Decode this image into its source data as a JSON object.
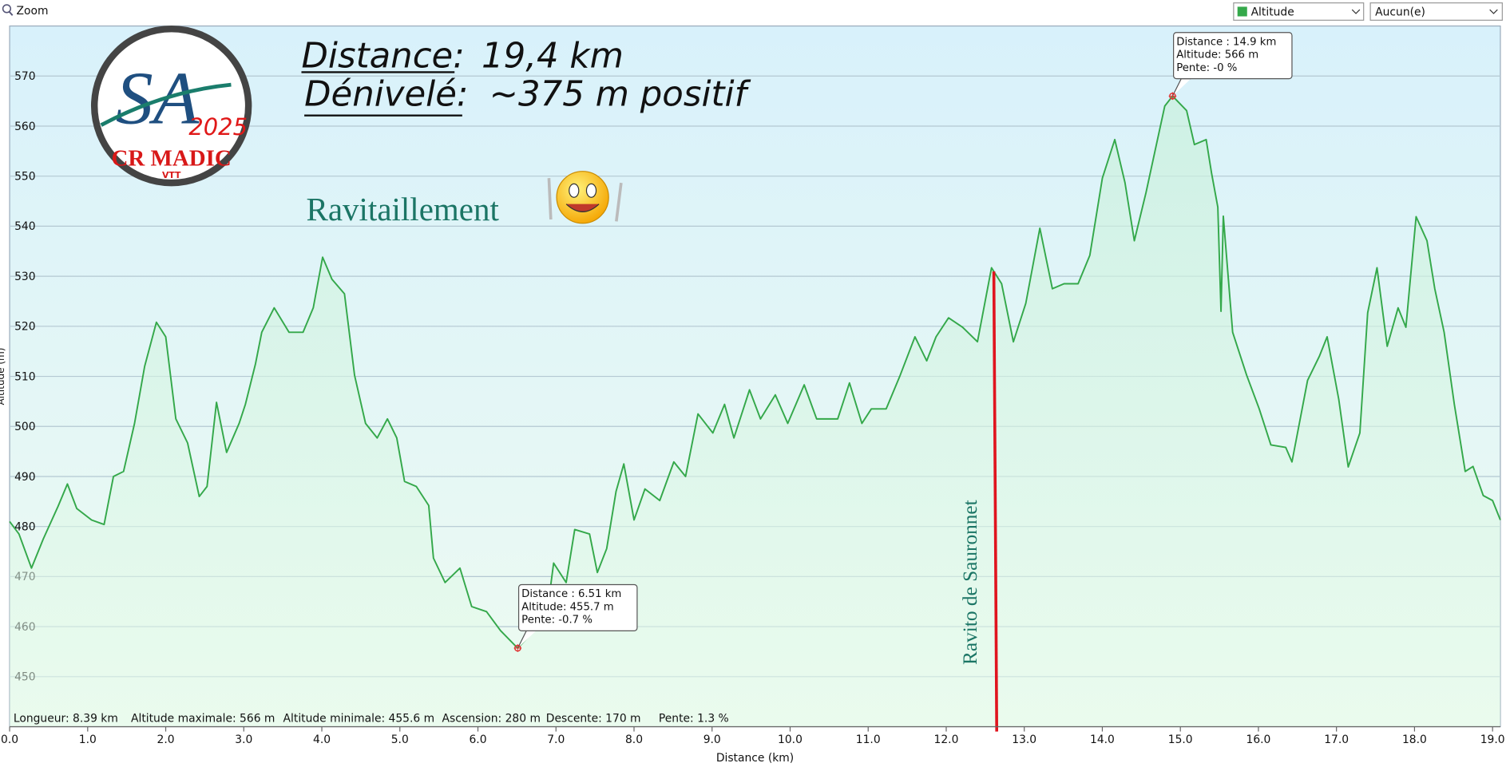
{
  "toolbar": {
    "zoom": "Zoom",
    "series_select": "Altitude",
    "compare_select": "Aucun(e)"
  },
  "chart_data": {
    "type": "line",
    "xlabel": "Distance    (km)",
    "ylabel": "Altitude (m)",
    "xlim": [
      0,
      19.1
    ],
    "ylim": [
      440,
      580
    ],
    "xticks": [
      {
        "value": 0,
        "label": "0.0"
      },
      {
        "value": 1,
        "label": "1.0"
      },
      {
        "value": 2,
        "label": "2.0"
      },
      {
        "value": 3,
        "label": "3.0"
      },
      {
        "value": 4,
        "label": "4.0"
      },
      {
        "value": 5,
        "label": "5.0"
      },
      {
        "value": 6,
        "label": "6.0"
      },
      {
        "value": 7,
        "label": "7.0"
      },
      {
        "value": 8,
        "label": "8.0"
      },
      {
        "value": 9,
        "label": "9.0"
      },
      {
        "value": 10,
        "label": "10.0"
      },
      {
        "value": 11,
        "label": "11.0"
      },
      {
        "value": 12,
        "label": "12.0"
      },
      {
        "value": 13,
        "label": "13.0"
      },
      {
        "value": 14,
        "label": "14.0"
      },
      {
        "value": 15,
        "label": "15.0"
      },
      {
        "value": 16,
        "label": "16.0"
      },
      {
        "value": 17,
        "label": "17.0"
      },
      {
        "value": 18,
        "label": "18.0"
      },
      {
        "value": 19,
        "label": "19.0"
      }
    ],
    "yticks": [
      450,
      460,
      470,
      480,
      490,
      500,
      510,
      520,
      530,
      540,
      550,
      560,
      570
    ],
    "grid": true,
    "series": [
      {
        "name": "Altitude",
        "color": "#34a84a",
        "x": [
          0,
          0.12,
          0.28,
          0.43,
          0.62,
          0.74,
          0.86,
          1.05,
          1.21,
          1.33,
          1.46,
          1.6,
          1.73,
          1.88,
          2.0,
          2.13,
          2.28,
          2.43,
          2.53,
          2.65,
          2.78,
          2.94,
          3.02,
          3.15,
          3.23,
          3.39,
          3.58,
          3.76,
          3.89,
          4.01,
          4.13,
          4.29,
          4.42,
          4.56,
          4.71,
          4.84,
          4.96,
          5.06,
          5.21,
          5.37,
          5.43,
          5.58,
          5.77,
          5.92,
          6.11,
          6.29,
          6.51,
          6.72,
          6.88,
          6.97,
          7.13,
          7.24,
          7.43,
          7.53,
          7.65,
          7.77,
          7.87,
          8.0,
          8.14,
          8.33,
          8.51,
          8.66,
          8.82,
          9.01,
          9.16,
          9.28,
          9.48,
          9.62,
          9.81,
          9.97,
          10.18,
          10.34,
          10.61,
          10.76,
          10.92,
          11.04,
          11.23,
          11.41,
          11.6,
          11.75,
          11.87,
          12.03,
          12.21,
          12.4,
          12.58,
          12.71,
          12.86,
          13.02,
          13.2,
          13.36,
          13.51,
          13.69,
          13.84,
          14.0,
          14.16,
          14.29,
          14.41,
          14.56,
          14.68,
          14.8,
          14.9,
          15.08,
          15.18,
          15.33,
          15.4,
          15.48,
          15.52,
          15.55,
          15.67,
          15.85,
          16.01,
          16.16,
          16.35,
          16.43,
          16.63,
          16.78,
          16.88,
          17.03,
          17.15,
          17.3,
          17.4,
          17.52,
          17.65,
          17.79,
          17.89,
          18.02,
          18.16,
          18.26,
          18.38,
          18.51,
          18.65,
          18.75,
          18.88,
          19.0,
          19.1
        ],
        "values": [
          481,
          478.5,
          471.7,
          477.5,
          484,
          488.5,
          483.6,
          481.3,
          480.4,
          490,
          491,
          500.6,
          512,
          520.8,
          517.9,
          501.5,
          496.7,
          486,
          488,
          504.8,
          494.8,
          500.6,
          504.4,
          512.5,
          518.8,
          523.7,
          518.8,
          518.8,
          523.7,
          533.8,
          529.4,
          526.5,
          510.2,
          500.6,
          497.7,
          501.5,
          497.7,
          489,
          488,
          484.2,
          473.7,
          468.8,
          471.7,
          464,
          463,
          459.2,
          455.7,
          459.2,
          462,
          472.7,
          468.8,
          479.4,
          478.5,
          470.8,
          475.6,
          487,
          492.5,
          481.3,
          487.5,
          485.2,
          492.9,
          490,
          502.5,
          498.7,
          504.4,
          497.7,
          507.3,
          501.5,
          506.3,
          500.6,
          508.3,
          501.5,
          501.5,
          508.7,
          500.6,
          503.5,
          503.5,
          510.2,
          517.9,
          513.1,
          517.9,
          521.7,
          519.8,
          516.9,
          531.7,
          528.5,
          516.9,
          524.6,
          539.6,
          527.5,
          528.5,
          528.5,
          534.2,
          549.6,
          557.3,
          548.7,
          537.1,
          546.7,
          555.4,
          564,
          566,
          563.1,
          556.3,
          557.3,
          550.6,
          543.8,
          523,
          542,
          518.8,
          510.2,
          503.5,
          496.3,
          495.8,
          492.9,
          509.2,
          514,
          517.9,
          505.4,
          491.9,
          498.7,
          522.7,
          531.7,
          516,
          523.7,
          519.8,
          541.9,
          537.1,
          527.5,
          518.8,
          504.4,
          491,
          492,
          486.2,
          485.2,
          481.3
        ]
      }
    ],
    "annotations": [
      {
        "x": 6.51,
        "y": 455.7,
        "color": "#e03030",
        "lines": [
          "Distance  : 6.51 km",
          "Altitude: 455.7 m",
          "Pente: -0.7 %"
        ]
      },
      {
        "x": 14.9,
        "y": 566,
        "color": "#e03030",
        "lines": [
          "Distance  : 14.9 km",
          "Altitude: 566 m",
          "Pente: -0 %"
        ]
      }
    ],
    "marker_line": {
      "x": 12.61,
      "color": "#e0141e",
      "label": "Ravito  de Sauronnet"
    },
    "stats": [
      "Longueur: 8.39 km",
      "Altitude maximale: 566 m",
      "Altitude minimale: 455.6 m",
      "Ascension: 280 m",
      "Descente: 170 m",
      "Pente: 1.3 %"
    ]
  },
  "overlay": {
    "distance_label": "Distance:",
    "distance_value": "19,4 km",
    "denivele_label": "Dénivelé:",
    "denivele_value": "~375 m positif",
    "ravitaillement": "Ravitaillement",
    "logo_year": "2025",
    "logo_club": "CR MADIC",
    "logo_vtt": "VTT"
  }
}
